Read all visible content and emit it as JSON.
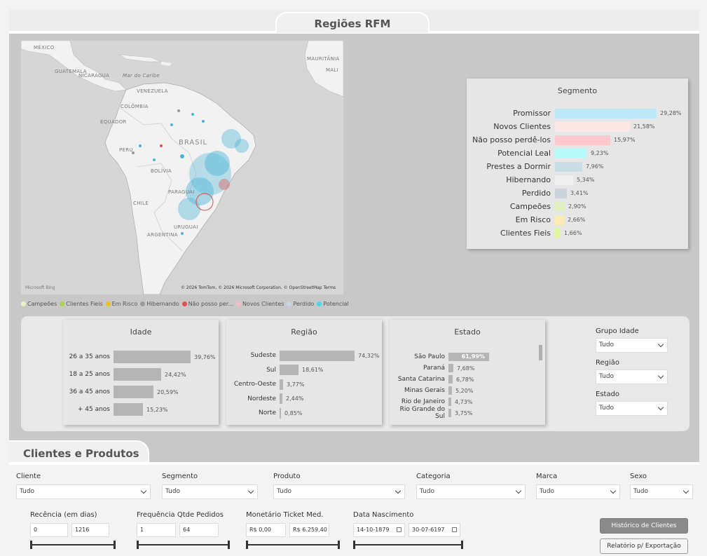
{
  "top": {
    "title": "Regiões RFM"
  },
  "map": {
    "labels": {
      "mexico": "MÉXICO",
      "guatemala": "GUATEMALA",
      "nicaragua": "NICARÁGUA",
      "caribe": "Mar do Caribe",
      "venezuela": "VENEZUELA",
      "colombia": "COLÔMBIA",
      "equador": "EQUADOR",
      "peru": "PERU",
      "brasil": "BRASIL",
      "bolivia": "BOLÍVIA",
      "paraguai": "PARAGUAI",
      "chile": "CHILE",
      "uruguai": "URUGUAI",
      "argentina": "ARGENTINA",
      "mauritania": "MAURITÂNIA",
      "mali": "MALI"
    },
    "bing": "Microsoft Bing",
    "copyright": "© 2026 TomTom, © 2026 Microsoft Corporation, © OpenStreetMap  Terms"
  },
  "legend": [
    {
      "label": "Campeões",
      "color": "#e6f2c6"
    },
    {
      "label": "Clientes Fieis",
      "color": "#a8d64a"
    },
    {
      "label": "Em Risco",
      "color": "#f0c020"
    },
    {
      "label": "Hibernando",
      "color": "#9a9a9a"
    },
    {
      "label": "Não posso per...",
      "color": "#e05050"
    },
    {
      "label": "Novos Clientes",
      "color": "#f7b8c8"
    },
    {
      "label": "Perdido",
      "color": "#bcd8e6"
    },
    {
      "label": "Potencial Leal",
      "color": "#4ad6e6"
    }
  ],
  "segmento": {
    "title": "Segmento",
    "max": 29.28,
    "rows": [
      {
        "label": "Promissor",
        "value": 29.28,
        "display": "29,28%",
        "color": "#bde8f7"
      },
      {
        "label": "Novos Clientes",
        "value": 21.58,
        "display": "21,58%",
        "color": "#fde6e6"
      },
      {
        "label": "Não posso perdê-los",
        "value": 15.97,
        "display": "15,97%",
        "color": "#ffc8d0"
      },
      {
        "label": "Potencial Leal",
        "value": 9.23,
        "display": "9,23%",
        "color": "#b8fafa"
      },
      {
        "label": "Prestes a Dormir",
        "value": 7.96,
        "display": "7,96%",
        "color": "#c9dde5"
      },
      {
        "label": "Hibernando",
        "value": 5.34,
        "display": "5,34%",
        "color": "#f0f0f0"
      },
      {
        "label": "Perdido",
        "value": 3.41,
        "display": "3,41%",
        "color": "#c9d5db"
      },
      {
        "label": "Campeões",
        "value": 2.9,
        "display": "2,90%",
        "color": "#e2f0c0"
      },
      {
        "label": "Em Risco",
        "value": 2.66,
        "display": "2,66%",
        "color": "#fdeab0"
      },
      {
        "label": "Clientes Fieis",
        "value": 1.66,
        "display": "1,66%",
        "color": "#e0f7a0"
      }
    ]
  },
  "idade": {
    "title": "Idade",
    "max": 39.76,
    "rows": [
      {
        "label": "26 a 35 anos",
        "value": 39.76,
        "display": "39,76%"
      },
      {
        "label": "18 a 25 anos",
        "value": 24.42,
        "display": "24,42%"
      },
      {
        "label": "36 a 45 anos",
        "value": 20.59,
        "display": "20,59%"
      },
      {
        "label": "+ 45 anos",
        "value": 15.23,
        "display": "15,23%"
      }
    ]
  },
  "regiao": {
    "title": "Região",
    "max": 74.32,
    "rows": [
      {
        "label": "Sudeste",
        "value": 74.32,
        "display": "74,32%"
      },
      {
        "label": "Sul",
        "value": 18.61,
        "display": "18,61%"
      },
      {
        "label": "Centro-Oeste",
        "value": 3.77,
        "display": "3,77%"
      },
      {
        "label": "Nordeste",
        "value": 2.44,
        "display": "2,44%"
      },
      {
        "label": "Norte",
        "value": 0.85,
        "display": "0,85%"
      }
    ]
  },
  "estado": {
    "title": "Estado",
    "max": 61.99,
    "rows": [
      {
        "label": "São Paulo",
        "value": 61.99,
        "display": "61,99%"
      },
      {
        "label": "Paraná",
        "value": 7.68,
        "display": "7,68%"
      },
      {
        "label": "Santa Catarina",
        "value": 6.78,
        "display": "6,78%"
      },
      {
        "label": "Minas Gerais",
        "value": 5.2,
        "display": "5,20%"
      },
      {
        "label": "Rio de Janeiro",
        "value": 4.73,
        "display": "4,73%"
      },
      {
        "label": "Rio Grande do Sul",
        "value": 3.75,
        "display": "3,75%"
      }
    ]
  },
  "side_filters": {
    "grupo_idade": {
      "label": "Grupo Idade",
      "value": "Tudo"
    },
    "regiao": {
      "label": "Região",
      "value": "Tudo"
    },
    "estado": {
      "label": "Estado",
      "value": "Tudo"
    }
  },
  "bottom": {
    "title": "Clientes e Produtos",
    "filters": {
      "cliente": {
        "label": "Cliente",
        "value": "Tudo"
      },
      "segmento": {
        "label": "Segmento",
        "value": "Tudo"
      },
      "produto": {
        "label": "Produto",
        "value": "Tudo"
      },
      "categoria": {
        "label": "Categoria",
        "value": "Tudo"
      },
      "marca": {
        "label": "Marca",
        "value": "Tudo"
      },
      "sexo": {
        "label": "Sexo",
        "value": "Tudo"
      }
    },
    "ranges": {
      "recencia": {
        "label": "Recência (em dias)",
        "min": "0",
        "max": "1216"
      },
      "frequencia": {
        "label": "Frequência Qtde Pedidos",
        "min": "1",
        "max": "64"
      },
      "monetario": {
        "label": "Monetário Ticket Med.",
        "min": "R$ 0,00",
        "max": "R$ 6.259,40"
      },
      "nascimento": {
        "label": "Data Nascimento",
        "min": "14-10-1879",
        "max": "30-07-6197"
      }
    },
    "buttons": {
      "historico": "Histórico de Clientes",
      "relatorio": "Relatório p/ Exportação"
    }
  }
}
